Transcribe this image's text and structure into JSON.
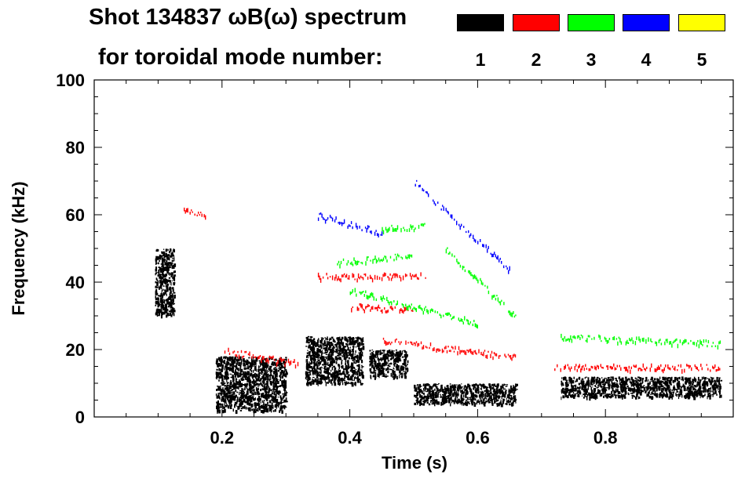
{
  "title_line1": "Shot 134837 ωB(ω) spectrum",
  "title_line2": "for toroidal mode number:",
  "legend": [
    {
      "label": "1",
      "color": "#000000"
    },
    {
      "label": "2",
      "color": "#ff0000"
    },
    {
      "label": "3",
      "color": "#00ff00"
    },
    {
      "label": "4",
      "color": "#0000ff"
    },
    {
      "label": "5",
      "color": "#ffff00"
    }
  ],
  "chart_data": {
    "type": "scatter",
    "title": "Shot 134837 ωB(ω) spectrum for toroidal mode number",
    "xlabel": "Time (s)",
    "ylabel": "Frequency (kHz)",
    "xlim": [
      0.0,
      1.0
    ],
    "ylim": [
      0,
      100
    ],
    "xticks": [
      0.2,
      0.4,
      0.6,
      0.8
    ],
    "xtick_labels": [
      "0.2",
      "0.4",
      "0.6",
      "0.8"
    ],
    "yticks": [
      0,
      20,
      40,
      60,
      80,
      100
    ],
    "ytick_labels": [
      "0",
      "20",
      "40",
      "60",
      "80",
      "100"
    ],
    "series": [
      {
        "name": "1",
        "color": "#000000",
        "regions": [
          {
            "t": [
              0.095,
              0.125
            ],
            "f": [
              30,
              50
            ]
          },
          {
            "t": [
              0.19,
              0.3
            ],
            "f": [
              2,
              18
            ]
          },
          {
            "t": [
              0.33,
              0.42
            ],
            "f": [
              10,
              24
            ]
          },
          {
            "t": [
              0.43,
              0.49
            ],
            "f": [
              12,
              20
            ]
          },
          {
            "t": [
              0.5,
              0.66
            ],
            "f": [
              4,
              10
            ]
          },
          {
            "t": [
              0.73,
              0.98
            ],
            "f": [
              6,
              12
            ]
          }
        ]
      },
      {
        "name": "2",
        "color": "#ff0000",
        "tracks": [
          {
            "t": [
              0.14,
              0.18
            ],
            "f": [
              62,
              60
            ]
          },
          {
            "t": [
              0.2,
              0.32
            ],
            "f": [
              20,
              16
            ]
          },
          {
            "t": [
              0.35,
              0.52
            ],
            "f": [
              42,
              42
            ]
          },
          {
            "t": [
              0.4,
              0.5
            ],
            "f": [
              33,
              32
            ]
          },
          {
            "t": [
              0.45,
              0.66
            ],
            "f": [
              23,
              18
            ]
          },
          {
            "t": [
              0.72,
              0.98
            ],
            "f": [
              15,
              15
            ]
          }
        ]
      },
      {
        "name": "3",
        "color": "#00ff00",
        "tracks": [
          {
            "t": [
              0.45,
              0.52
            ],
            "f": [
              56,
              57
            ]
          },
          {
            "t": [
              0.38,
              0.5
            ],
            "f": [
              46,
              48
            ]
          },
          {
            "t": [
              0.4,
              0.6
            ],
            "f": [
              38,
              28
            ]
          },
          {
            "t": [
              0.55,
              0.66
            ],
            "f": [
              50,
              30
            ]
          },
          {
            "t": [
              0.73,
              0.98
            ],
            "f": [
              24,
              22
            ]
          }
        ]
      },
      {
        "name": "4",
        "color": "#0000ff",
        "tracks": [
          {
            "t": [
              0.35,
              0.45
            ],
            "f": [
              60,
              55
            ]
          },
          {
            "t": [
              0.5,
              0.65
            ],
            "f": [
              70,
              44
            ]
          }
        ]
      },
      {
        "name": "5",
        "color": "#ffff00",
        "tracks": []
      }
    ]
  }
}
